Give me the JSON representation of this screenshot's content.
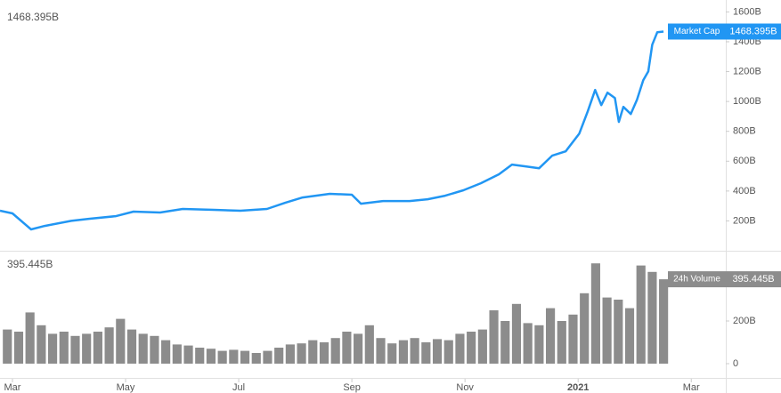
{
  "chart_data": [
    {
      "type": "line",
      "series": [
        {
          "name": "Market Cap",
          "color": "#2196f3",
          "last_value_label": "1468.395B",
          "x": [
            -0.22,
            0,
            0.33,
            0.57,
            1.04,
            1.35,
            1.83,
            2.14,
            2.61,
            3.01,
            3.56,
            4.03,
            4.5,
            4.82,
            5.13,
            5.61,
            6.0,
            6.16,
            6.55,
            7.02,
            7.34,
            7.65,
            7.97,
            8.28,
            8.6,
            8.83,
            9.07,
            9.31,
            9.54,
            9.78,
            10.02,
            10.17,
            10.3,
            10.41,
            10.52,
            10.65,
            10.72,
            10.8,
            10.93,
            11.04,
            11.15,
            11.24,
            11.31,
            11.4,
            11.51
          ],
          "values": [
            268,
            250,
            143,
            166,
            200,
            214,
            232,
            262,
            256,
            280,
            274,
            268,
            280,
            321,
            357,
            381,
            375,
            315,
            333,
            333,
            345,
            369,
            405,
            452,
            512,
            577,
            565,
            553,
            637,
            666,
            785,
            934,
            1077,
            976,
            1059,
            1023,
            863,
            964,
            916,
            1012,
            1142,
            1202,
            1380,
            1464,
            1468.395
          ]
        }
      ],
      "xlim": [
        -0.22,
        12.61
      ],
      "ylim": [
        0,
        1650
      ],
      "yticks": [
        {
          "value": 200,
          "label": "200B"
        },
        {
          "value": 400,
          "label": "400B"
        },
        {
          "value": 600,
          "label": "600B"
        },
        {
          "value": 800,
          "label": "800B"
        },
        {
          "value": 1000,
          "label": "1000B"
        },
        {
          "value": 1200,
          "label": "1200B"
        },
        {
          "value": 1400,
          "label": "1400B"
        },
        {
          "value": 1600,
          "label": "1600B"
        }
      ]
    },
    {
      "type": "bar",
      "series": [
        {
          "name": "24h Volume",
          "color": "#8c8c8c",
          "last_value_label": "395.445B",
          "x": [
            -0.09,
            0.11,
            0.31,
            0.51,
            0.71,
            0.91,
            1.11,
            1.31,
            1.51,
            1.71,
            1.91,
            2.11,
            2.31,
            2.51,
            2.71,
            2.91,
            3.11,
            3.31,
            3.51,
            3.71,
            3.91,
            4.11,
            4.31,
            4.51,
            4.71,
            4.91,
            5.11,
            5.31,
            5.51,
            5.71,
            5.91,
            6.11,
            6.31,
            6.51,
            6.71,
            6.91,
            7.11,
            7.31,
            7.51,
            7.71,
            7.91,
            8.11,
            8.31,
            8.51,
            8.71,
            8.91,
            9.11,
            9.31,
            9.51,
            9.71,
            9.91,
            10.11,
            10.31,
            10.51,
            10.71,
            10.91,
            11.11,
            11.31,
            11.51
          ],
          "values": [
            160,
            150,
            240,
            180,
            140,
            150,
            130,
            140,
            150,
            170,
            210,
            160,
            140,
            130,
            110,
            90,
            85,
            75,
            70,
            60,
            65,
            60,
            50,
            60,
            75,
            90,
            95,
            110,
            100,
            120,
            150,
            140,
            180,
            120,
            95,
            110,
            120,
            100,
            115,
            110,
            140,
            150,
            160,
            250,
            200,
            280,
            190,
            180,
            260,
            200,
            230,
            330,
            470,
            310,
            300,
            260,
            460,
            430,
            395.445
          ]
        }
      ],
      "xlim": [
        -0.22,
        12.61
      ],
      "xticks": [
        {
          "value": 0,
          "label": "Mar"
        },
        {
          "value": 2,
          "label": "May"
        },
        {
          "value": 4,
          "label": "Jul"
        },
        {
          "value": 6,
          "label": "Sep"
        },
        {
          "value": 8,
          "label": "Nov"
        },
        {
          "value": 10,
          "label": "2021"
        },
        {
          "value": 12,
          "label": "Mar"
        }
      ],
      "ylim": [
        0,
        525
      ],
      "yticks": [
        0,
        {
          "value": 200,
          "label": "200B"
        }
      ]
    }
  ]
}
